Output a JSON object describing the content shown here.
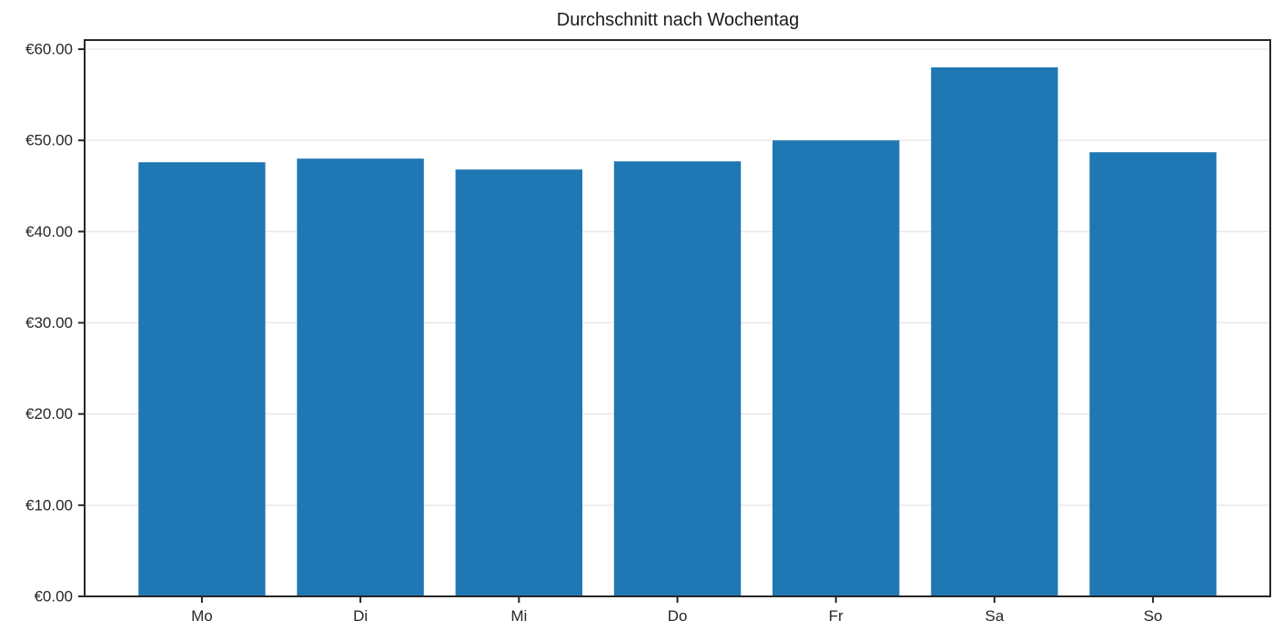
{
  "chart_data": {
    "type": "bar",
    "title": "Durchschnitt nach Wochentag",
    "categories": [
      "Mo",
      "Di",
      "Mi",
      "Do",
      "Fr",
      "Sa",
      "So"
    ],
    "values": [
      47.6,
      48.0,
      46.8,
      47.7,
      50.0,
      58.0,
      48.7
    ],
    "y_ticks": [
      0,
      10,
      20,
      30,
      40,
      50,
      60
    ],
    "y_tick_labels": [
      "€0.00",
      "€10.00",
      "€20.00",
      "€30.00",
      "€40.00",
      "€50.00",
      "€60.00"
    ],
    "xlabel": "",
    "ylabel": "",
    "ylim": [
      0,
      61
    ],
    "grid": true,
    "legend_position": "none",
    "colors": {
      "bar": "#1f77b4",
      "grid": "#e8e8e8",
      "spine": "#262626",
      "text": "#262626",
      "title": "#1a1a1a",
      "background": "#ffffff"
    }
  }
}
